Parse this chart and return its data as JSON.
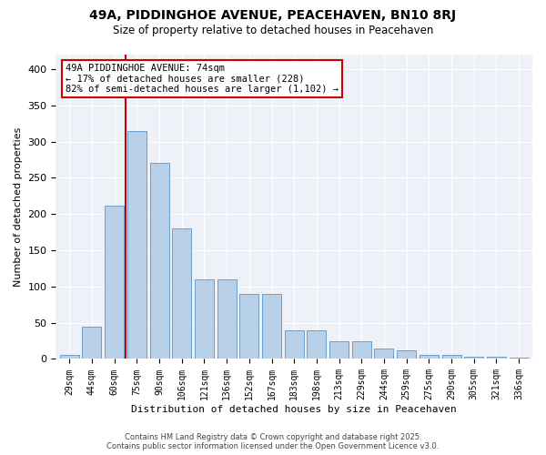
{
  "title": "49A, PIDDINGHOE AVENUE, PEACEHAVEN, BN10 8RJ",
  "subtitle": "Size of property relative to detached houses in Peacehaven",
  "xlabel": "Distribution of detached houses by size in Peacehaven",
  "ylabel": "Number of detached properties",
  "categories": [
    "29sqm",
    "44sqm",
    "60sqm",
    "75sqm",
    "90sqm",
    "106sqm",
    "121sqm",
    "136sqm",
    "152sqm",
    "167sqm",
    "183sqm",
    "198sqm",
    "213sqm",
    "229sqm",
    "244sqm",
    "259sqm",
    "275sqm",
    "290sqm",
    "305sqm",
    "321sqm",
    "336sqm"
  ],
  "values": [
    5,
    45,
    212,
    315,
    270,
    180,
    110,
    110,
    90,
    90,
    40,
    40,
    25,
    25,
    15,
    12,
    6,
    6,
    3,
    3,
    2
  ],
  "bar_color": "#b8d0e8",
  "bar_edge_color": "#6aa0cc",
  "vline_x": 2.5,
  "vline_color": "#cc0000",
  "annotation_lines": [
    "49A PIDDINGHOE AVENUE: 74sqm",
    "← 17% of detached houses are smaller (228)",
    "82% of semi-detached houses are larger (1,102) →"
  ],
  "annotation_box_color": "#cc0000",
  "ylim": [
    0,
    420
  ],
  "yticks": [
    0,
    50,
    100,
    150,
    200,
    250,
    300,
    350,
    400
  ],
  "background_color": "#eef2f8",
  "footer_line1": "Contains HM Land Registry data © Crown copyright and database right 2025.",
  "footer_line2": "Contains public sector information licensed under the Open Government Licence v3.0."
}
